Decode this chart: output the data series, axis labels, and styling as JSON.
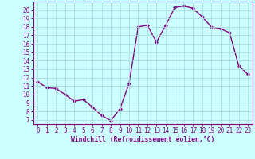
{
  "x": [
    0,
    1,
    2,
    3,
    4,
    5,
    6,
    7,
    8,
    9,
    10,
    11,
    12,
    13,
    14,
    15,
    16,
    17,
    18,
    19,
    20,
    21,
    22,
    23
  ],
  "y": [
    11.5,
    10.8,
    10.7,
    10.0,
    9.2,
    9.4,
    8.5,
    7.5,
    6.9,
    8.3,
    11.3,
    18.0,
    18.2,
    16.2,
    18.2,
    20.3,
    20.5,
    20.2,
    19.2,
    18.0,
    17.8,
    17.3,
    13.4,
    12.4
  ],
  "line_color": "#800080",
  "marker": "D",
  "marker_size": 2.0,
  "bg_color": "#ccffff",
  "grid_color": "#aadddd",
  "xlabel": "Windchill (Refroidissement éolien,°C)",
  "xlabel_color": "#800080",
  "tick_color": "#800080",
  "xlim": [
    -0.5,
    23.5
  ],
  "ylim": [
    6.5,
    21.0
  ],
  "yticks": [
    7,
    8,
    9,
    10,
    11,
    12,
    13,
    14,
    15,
    16,
    17,
    18,
    19,
    20
  ],
  "xticks": [
    0,
    1,
    2,
    3,
    4,
    5,
    6,
    7,
    8,
    9,
    10,
    11,
    12,
    13,
    14,
    15,
    16,
    17,
    18,
    19,
    20,
    21,
    22,
    23
  ],
  "linewidth": 1.0,
  "tick_fontsize": 5.5,
  "xlabel_fontsize": 5.8,
  "xlabel_fontweight": "bold"
}
